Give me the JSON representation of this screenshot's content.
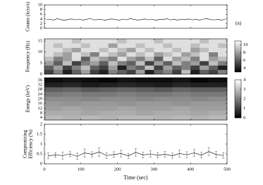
{
  "chart_data": [
    {
      "type": "line",
      "ylabel": "Counts (kcts/s)",
      "annotation": "(n)",
      "color": "#000000",
      "x": [
        5,
        15,
        25,
        35,
        45,
        55,
        65,
        75,
        85,
        95,
        105,
        115,
        125,
        135,
        145,
        155,
        165,
        175,
        185,
        195,
        205,
        215,
        225,
        235,
        245,
        255,
        265,
        275,
        285,
        295,
        305,
        315,
        325,
        335,
        345,
        355,
        365,
        375,
        385,
        395,
        405,
        415,
        425,
        435,
        445,
        455,
        465,
        475,
        485,
        495
      ],
      "values": [
        3.6,
        3.9,
        3.5,
        4.1,
        3.7,
        3.4,
        3.8,
        4.0,
        3.6,
        3.9,
        3.5,
        3.8,
        4.2,
        3.6,
        3.7,
        3.9,
        3.4,
        3.8,
        4.0,
        3.7,
        3.5,
        3.9,
        3.6,
        4.1,
        3.8,
        3.5,
        3.7,
        4.0,
        3.6,
        3.9,
        3.4,
        3.8,
        3.7,
        4.1,
        3.6,
        3.8,
        3.5,
        3.9,
        3.7,
        4.0,
        3.6,
        3.8,
        3.5,
        3.9,
        4.1,
        3.7,
        3.6,
        3.8,
        3.5,
        3.9
      ],
      "xlim": [
        0,
        500
      ],
      "ylim": [
        0,
        10
      ],
      "yticks": [
        0,
        2,
        4,
        6,
        8,
        10
      ]
    },
    {
      "type": "heatmap",
      "ylabel": "Frequency (Hz)",
      "xlim": [
        0,
        500
      ],
      "ylim": [
        0,
        16
      ],
      "yticks": [
        0,
        5,
        10,
        15
      ],
      "colorbar": {
        "lim": [
          3,
          11
        ],
        "ticks": [
          4,
          6,
          8,
          10
        ]
      },
      "values": [
        [
          5,
          7,
          4,
          6,
          8,
          5,
          4,
          7,
          6,
          5,
          8,
          4,
          6,
          7,
          5,
          9,
          4,
          6,
          5,
          7
        ],
        [
          6,
          8,
          5,
          7,
          9,
          6,
          5,
          8,
          4,
          7,
          6,
          9,
          5,
          8,
          6,
          7,
          5,
          8,
          6,
          4
        ],
        [
          8,
          6,
          9,
          5,
          7,
          8,
          6,
          9,
          7,
          6,
          9,
          5,
          8,
          6,
          9,
          7,
          8,
          5,
          9,
          7
        ],
        [
          9,
          7,
          8,
          10,
          6,
          9,
          8,
          7,
          10,
          8,
          7,
          9,
          6,
          10,
          8,
          9,
          7,
          10,
          8,
          9
        ],
        [
          10,
          9,
          8,
          10,
          9,
          7,
          10,
          9,
          8,
          10,
          9,
          10,
          8,
          9,
          10,
          8,
          9,
          10,
          7,
          10
        ],
        [
          10,
          10,
          9,
          8,
          10,
          10,
          9,
          10,
          9,
          8,
          10,
          9,
          10,
          10,
          9,
          10,
          8,
          9,
          10,
          10
        ],
        [
          10,
          9,
          10,
          10,
          9,
          10,
          10,
          8,
          10,
          10,
          9,
          10,
          10,
          9,
          10,
          10,
          9,
          10,
          10,
          9
        ],
        [
          10,
          10,
          10,
          9,
          10,
          10,
          10,
          10,
          9,
          10,
          10,
          10,
          9,
          10,
          10,
          10,
          10,
          9,
          10,
          10
        ]
      ]
    },
    {
      "type": "heatmap",
      "ylabel": "Energy (keV)",
      "xlim": [
        0,
        500
      ],
      "ylim": [
        2,
        38
      ],
      "yticks": [
        4,
        8,
        12,
        16,
        20,
        24,
        28,
        32,
        36
      ],
      "colorbar": {
        "lim": [
          0,
          4
        ],
        "ticks": [
          0,
          1,
          2,
          3,
          4
        ]
      },
      "values": [
        [
          2.9,
          2.8,
          2.9,
          2.8,
          2.9,
          2.9,
          2.8,
          2.9,
          2.8,
          2.9
        ],
        [
          2.7,
          2.7,
          2.6,
          2.7,
          2.7,
          2.6,
          2.7,
          2.7,
          2.6,
          2.7
        ],
        [
          2.5,
          2.6,
          2.5,
          2.5,
          2.6,
          2.5,
          2.5,
          2.6,
          2.5,
          2.5
        ],
        [
          2.4,
          2.3,
          2.4,
          2.4,
          2.3,
          2.4,
          2.4,
          2.3,
          2.4,
          2.4
        ],
        [
          2.2,
          2.2,
          2.1,
          2.2,
          2.2,
          2.1,
          2.2,
          2.2,
          2.1,
          2.2
        ],
        [
          1.9,
          2.0,
          1.9,
          1.9,
          2.0,
          1.9,
          1.9,
          2.0,
          1.9,
          1.9
        ],
        [
          1.5,
          1.6,
          1.4,
          1.5,
          1.6,
          1.5,
          1.4,
          1.6,
          1.5,
          1.5
        ],
        [
          0.5,
          0.6,
          0.4,
          0.5,
          0.6,
          0.5,
          0.4,
          0.6,
          0.5,
          0.5
        ],
        [
          0.2,
          0.3,
          0.2,
          0.1,
          0.3,
          0.2,
          0.2,
          0.3,
          0.1,
          0.2
        ]
      ]
    },
    {
      "type": "errorbar",
      "ylabel": [
        "Comptonizing",
        "Efficiency (%)"
      ],
      "xlabel": "Time (sec)",
      "color": "#000000",
      "x": [
        10,
        30,
        50,
        70,
        90,
        110,
        130,
        150,
        170,
        190,
        210,
        230,
        250,
        270,
        290,
        310,
        330,
        350,
        370,
        390,
        410,
        430,
        450,
        470,
        490
      ],
      "values": [
        0.4,
        0.45,
        0.42,
        0.5,
        0.38,
        0.55,
        0.48,
        0.6,
        0.42,
        0.47,
        0.52,
        0.4,
        0.58,
        0.45,
        0.5,
        0.43,
        0.48,
        0.41,
        0.52,
        0.46,
        0.55,
        0.44,
        0.62,
        0.47,
        0.42
      ],
      "errors": [
        0.15,
        0.12,
        0.18,
        0.14,
        0.16,
        0.2,
        0.13,
        0.22,
        0.15,
        0.14,
        0.17,
        0.13,
        0.19,
        0.15,
        0.16,
        0.14,
        0.15,
        0.13,
        0.18,
        0.15,
        0.17,
        0.14,
        0.2,
        0.16,
        0.14
      ],
      "xlim": [
        0,
        500
      ],
      "ylim": [
        0,
        2
      ],
      "yticks": [
        0,
        0.5,
        1,
        1.5,
        2
      ],
      "xticks": [
        0,
        100,
        200,
        300,
        400,
        500
      ]
    }
  ]
}
